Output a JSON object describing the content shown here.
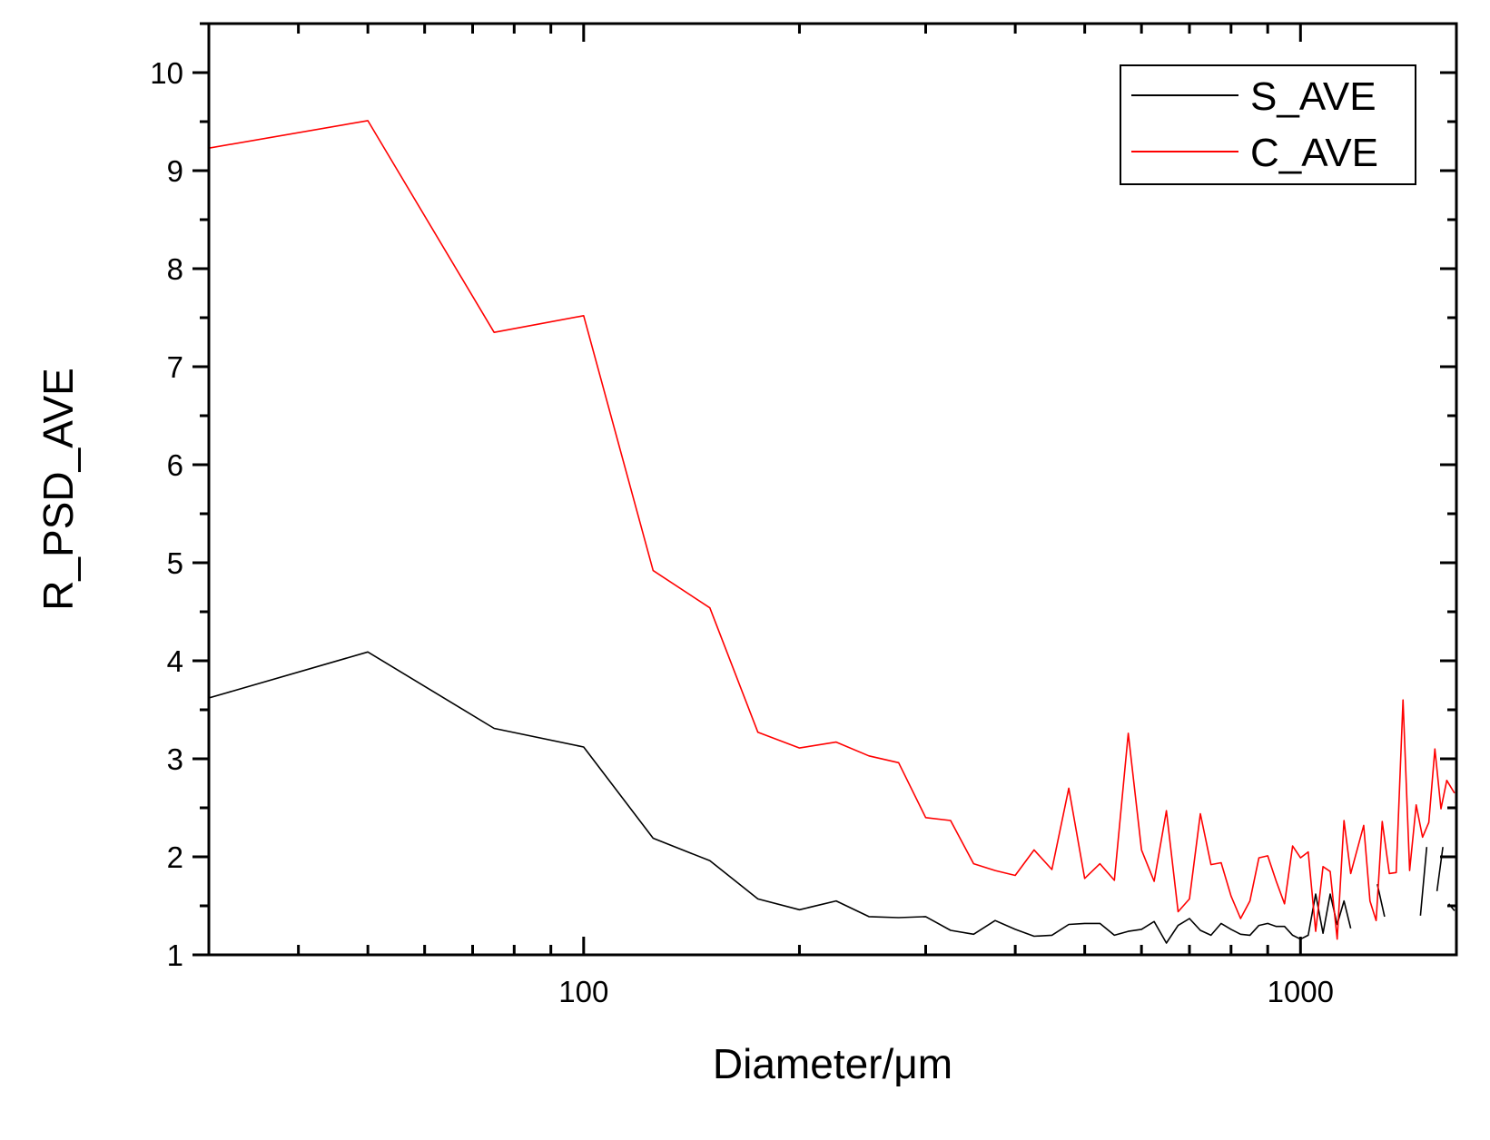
{
  "chart_data": {
    "type": "line",
    "title": "",
    "xlabel": "Diameter/μm",
    "ylabel": "R_PSD_AVE",
    "xscale": "log",
    "xlim": [
      30,
      1650
    ],
    "ylim": [
      1,
      10.5
    ],
    "x_ticks": [
      100,
      1000
    ],
    "x_tick_labels": [
      "100",
      "1000"
    ],
    "y_ticks": [
      1,
      2,
      3,
      4,
      5,
      6,
      7,
      8,
      9,
      10
    ],
    "y_tick_labels": [
      "1",
      "2",
      "3",
      "4",
      "5",
      "6",
      "7",
      "8",
      "9",
      "10"
    ],
    "grid": false,
    "legend_position": "top-right",
    "series": [
      {
        "name": "S_AVE",
        "color": "#000000",
        "points": [
          [
            30,
            3.62
          ],
          [
            50,
            4.09
          ],
          [
            75,
            3.31
          ],
          [
            100,
            3.12
          ],
          [
            125,
            2.19
          ],
          [
            150,
            1.96
          ],
          [
            175,
            1.57
          ],
          [
            200,
            1.46
          ],
          [
            225,
            1.55
          ],
          [
            250,
            1.39
          ],
          [
            275,
            1.38
          ],
          [
            300,
            1.39
          ],
          [
            325,
            1.25
          ],
          [
            350,
            1.21
          ],
          [
            375,
            1.35
          ],
          [
            400,
            1.26
          ],
          [
            425,
            1.19
          ],
          [
            450,
            1.2
          ],
          [
            475,
            1.31
          ],
          [
            500,
            1.32
          ],
          [
            525,
            1.32
          ],
          [
            550,
            1.2
          ],
          [
            575,
            1.24
          ],
          [
            600,
            1.26
          ],
          [
            625,
            1.34
          ],
          [
            650,
            1.12
          ],
          [
            675,
            1.3
          ],
          [
            700,
            1.37
          ],
          [
            725,
            1.25
          ],
          [
            750,
            1.2
          ],
          [
            775,
            1.32
          ],
          [
            800,
            1.26
          ],
          [
            825,
            1.21
          ],
          [
            850,
            1.2
          ],
          [
            875,
            1.3
          ],
          [
            900,
            1.32
          ],
          [
            925,
            1.29
          ],
          [
            950,
            1.29
          ],
          [
            975,
            1.2
          ],
          [
            1000,
            1.16
          ],
          [
            1025,
            1.2
          ],
          [
            1050,
            1.62
          ],
          [
            1075,
            1.22
          ],
          [
            1100,
            1.62
          ],
          [
            1125,
            1.31
          ],
          [
            1150,
            1.55
          ],
          [
            1175,
            1.27
          ],
          null,
          [
            1280,
            1.72
          ],
          [
            1310,
            1.39
          ],
          null,
          [
            1470,
            1.4
          ],
          [
            1500,
            2.1
          ],
          null,
          [
            1550,
            1.65
          ],
          [
            1580,
            2.1
          ],
          null,
          [
            1610,
            1.52
          ],
          [
            1640,
            1.45
          ]
        ]
      },
      {
        "name": "C_AVE",
        "color": "#ff0000",
        "points": [
          [
            30,
            9.23
          ],
          [
            50,
            9.51
          ],
          [
            75,
            7.35
          ],
          [
            100,
            7.52
          ],
          [
            125,
            4.92
          ],
          [
            150,
            4.54
          ],
          [
            175,
            3.27
          ],
          [
            200,
            3.11
          ],
          [
            225,
            3.17
          ],
          [
            250,
            3.03
          ],
          [
            275,
            2.96
          ],
          [
            300,
            2.4
          ],
          [
            325,
            2.37
          ],
          [
            350,
            1.93
          ],
          [
            375,
            1.86
          ],
          [
            400,
            1.81
          ],
          [
            425,
            2.07
          ],
          [
            450,
            1.87
          ],
          [
            475,
            2.7
          ],
          [
            500,
            1.78
          ],
          [
            525,
            1.93
          ],
          [
            550,
            1.76
          ],
          [
            575,
            3.26
          ],
          [
            600,
            2.07
          ],
          [
            625,
            1.75
          ],
          [
            650,
            2.47
          ],
          [
            675,
            1.44
          ],
          [
            700,
            1.57
          ],
          [
            725,
            2.44
          ],
          [
            750,
            1.92
          ],
          [
            775,
            1.94
          ],
          [
            800,
            1.6
          ],
          [
            825,
            1.37
          ],
          [
            850,
            1.55
          ],
          [
            875,
            1.99
          ],
          [
            900,
            2.01
          ],
          [
            925,
            1.75
          ],
          [
            950,
            1.52
          ],
          [
            975,
            2.11
          ],
          [
            1000,
            1.99
          ],
          [
            1025,
            2.05
          ],
          [
            1050,
            1.24
          ],
          [
            1075,
            1.9
          ],
          [
            1100,
            1.85
          ],
          [
            1125,
            1.16
          ],
          [
            1150,
            2.37
          ],
          [
            1175,
            1.83
          ],
          [
            1225,
            2.32
          ],
          [
            1250,
            1.55
          ],
          [
            1275,
            1.35
          ],
          [
            1300,
            2.36
          ],
          [
            1330,
            1.83
          ],
          [
            1360,
            1.84
          ],
          [
            1390,
            3.6
          ],
          [
            1420,
            1.86
          ],
          [
            1450,
            2.53
          ],
          [
            1480,
            2.2
          ],
          [
            1510,
            2.35
          ],
          [
            1540,
            3.1
          ],
          [
            1570,
            2.49
          ],
          [
            1600,
            2.78
          ],
          [
            1640,
            2.65
          ]
        ]
      }
    ]
  }
}
